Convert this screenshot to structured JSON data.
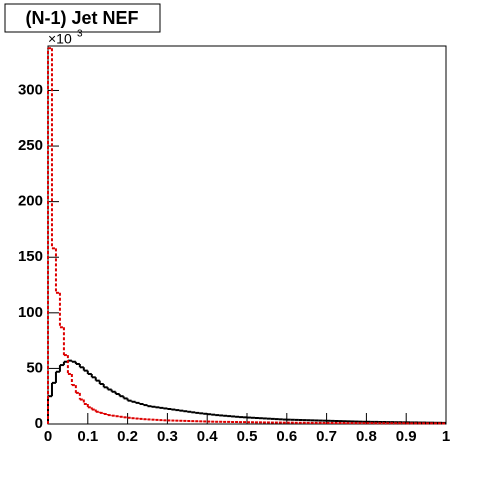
{
  "chart_data": {
    "type": "histogram",
    "title": "(N-1) Jet NEF",
    "y_multiplier": "×10",
    "y_multiplier_exponent": "3",
    "xlim": [
      0,
      1
    ],
    "ylim": [
      0,
      340
    ],
    "xticks": [
      0,
      0.1,
      0.2,
      0.3,
      0.4,
      0.5,
      0.6,
      0.7,
      0.8,
      0.9,
      1
    ],
    "yticks": [
      0,
      50,
      100,
      150,
      200,
      250,
      300
    ],
    "bins": [
      0,
      0.01,
      0.02,
      0.03,
      0.04,
      0.05,
      0.06,
      0.07,
      0.08,
      0.09,
      0.1,
      0.11,
      0.12,
      0.13,
      0.14,
      0.15,
      0.16,
      0.17,
      0.18,
      0.19,
      0.2,
      0.21,
      0.22,
      0.23,
      0.24,
      0.25,
      0.26,
      0.27,
      0.28,
      0.29,
      0.3,
      0.31,
      0.32,
      0.33,
      0.34,
      0.35,
      0.36,
      0.37,
      0.38,
      0.39,
      0.4,
      0.41,
      0.42,
      0.43,
      0.44,
      0.45,
      0.46,
      0.47,
      0.48,
      0.49,
      0.5,
      0.51,
      0.52,
      0.53,
      0.54,
      0.55,
      0.56,
      0.57,
      0.58,
      0.59,
      0.6,
      0.61,
      0.62,
      0.63,
      0.64,
      0.65,
      0.66,
      0.67,
      0.68,
      0.69,
      0.7,
      0.71,
      0.72,
      0.73,
      0.74,
      0.75,
      0.76,
      0.77,
      0.78,
      0.79,
      0.8,
      0.81,
      0.82,
      0.83,
      0.84,
      0.85,
      0.86,
      0.87,
      0.88,
      0.89,
      0.9,
      0.91,
      0.92,
      0.93,
      0.94,
      0.95,
      0.96,
      0.97,
      0.98,
      0.99,
      1
    ],
    "series": [
      {
        "color": "#000000",
        "dashed": false,
        "values": [
          25,
          37,
          47,
          53,
          56,
          57,
          56,
          54,
          51,
          48,
          45,
          42,
          39,
          36,
          33,
          31,
          29,
          27,
          25,
          23,
          21,
          20,
          19,
          18,
          17,
          16,
          15.5,
          15,
          14.5,
          14,
          13.5,
          13,
          12.5,
          12,
          11.5,
          11,
          10.5,
          10,
          9.6,
          9.2,
          8.8,
          8.4,
          8,
          7.7,
          7.4,
          7.1,
          6.8,
          6.5,
          6.2,
          6,
          5.8,
          5.6,
          5.4,
          5.2,
          5,
          4.8,
          4.6,
          4.4,
          4.2,
          4,
          3.9,
          3.8,
          3.7,
          3.6,
          3.5,
          3.4,
          3.3,
          3.2,
          3.1,
          3,
          2.9,
          2.8,
          2.7,
          2.6,
          2.5,
          2.4,
          2.3,
          2.2,
          2.1,
          2,
          2,
          1.9,
          1.9,
          1.8,
          1.8,
          1.7,
          1.7,
          1.6,
          1.6,
          1.5,
          1.5,
          1.4,
          1.4,
          1.3,
          1.3,
          1.2,
          1.2,
          1.1,
          1.1,
          1
        ]
      },
      {
        "color": "#dd0000",
        "dashed": true,
        "values": [
          338,
          158,
          118,
          87,
          62,
          45,
          35,
          28,
          22,
          18,
          15,
          13,
          11,
          10,
          9,
          8,
          7.5,
          7,
          6.5,
          6,
          5.6,
          5.2,
          4.9,
          4.6,
          4.3,
          4.1,
          3.9,
          3.7,
          3.5,
          3.3,
          3.2,
          3.1,
          3,
          2.9,
          2.8,
          2.7,
          2.6,
          2.5,
          2.4,
          2.3,
          2.2,
          2.1,
          2,
          2,
          1.9,
          1.9,
          1.8,
          1.8,
          1.7,
          1.7,
          1.6,
          1.6,
          1.5,
          1.5,
          1.4,
          1.4,
          1.3,
          1.3,
          1.3,
          1.2,
          1.2,
          1.2,
          1.1,
          1.1,
          1.1,
          1,
          1,
          1,
          1,
          0.9,
          0.9,
          0.9,
          0.9,
          0.9,
          0.9,
          0.8,
          0.8,
          0.8,
          0.8,
          0.8,
          0.8,
          0.8,
          0.7,
          0.7,
          0.7,
          0.7,
          0.7,
          0.7,
          0.7,
          0.7,
          0.6,
          0.6,
          0.6,
          0.6,
          0.6,
          0.6,
          0.6,
          0.6,
          0.6,
          0.5
        ]
      }
    ]
  }
}
